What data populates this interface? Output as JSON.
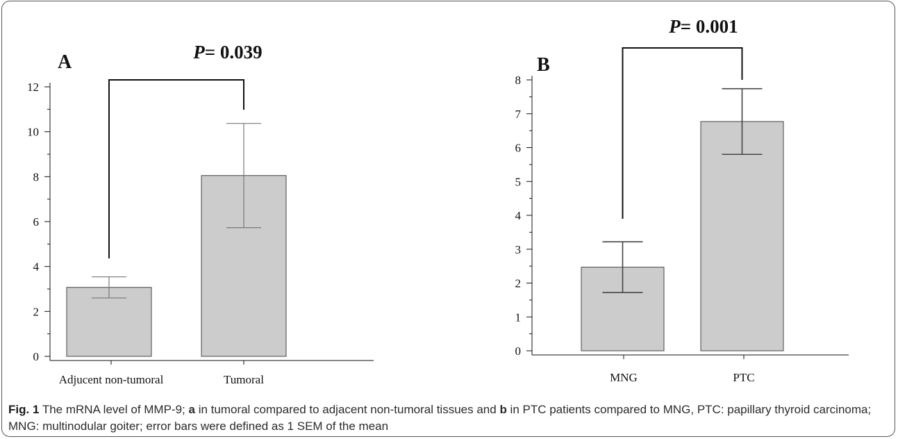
{
  "chart_data": [
    {
      "type": "bar",
      "panel_label": "A",
      "categories": [
        "Adjucent non-tumoral",
        "Tumoral"
      ],
      "values": [
        3.07,
        8.05
      ],
      "error": [
        0.47,
        2.32
      ],
      "yticks": [
        0,
        2,
        4,
        6,
        8,
        10,
        12
      ],
      "ylim": [
        0,
        12
      ],
      "significance": {
        "label_prefix": "P",
        "label_value": "= 0.039"
      },
      "bar_color": "#cccccc"
    },
    {
      "type": "bar",
      "panel_label": "B",
      "categories": [
        "MNG",
        "PTC"
      ],
      "values": [
        2.47,
        6.77
      ],
      "error": [
        0.75,
        0.97
      ],
      "yticks": [
        0,
        1,
        2,
        3,
        4,
        5,
        6,
        7,
        8
      ],
      "ylim": [
        0,
        8
      ],
      "significance": {
        "label_prefix": "P",
        "label_value": "= 0.001"
      },
      "bar_color": "#cccccc"
    }
  ],
  "caption": {
    "fig_label": "Fig. 1",
    "t1": " The mRNA level of MMP-9; ",
    "b1": "a",
    "t2": " in tumoral compared to adjacent non-tumoral tissues and ",
    "b2": "b",
    "t3": " in PTC patients compared to MNG, PTC: papillary thyroid carcinoma; MNG: multinodular goiter; error bars were defined as 1 SEM of the mean"
  }
}
